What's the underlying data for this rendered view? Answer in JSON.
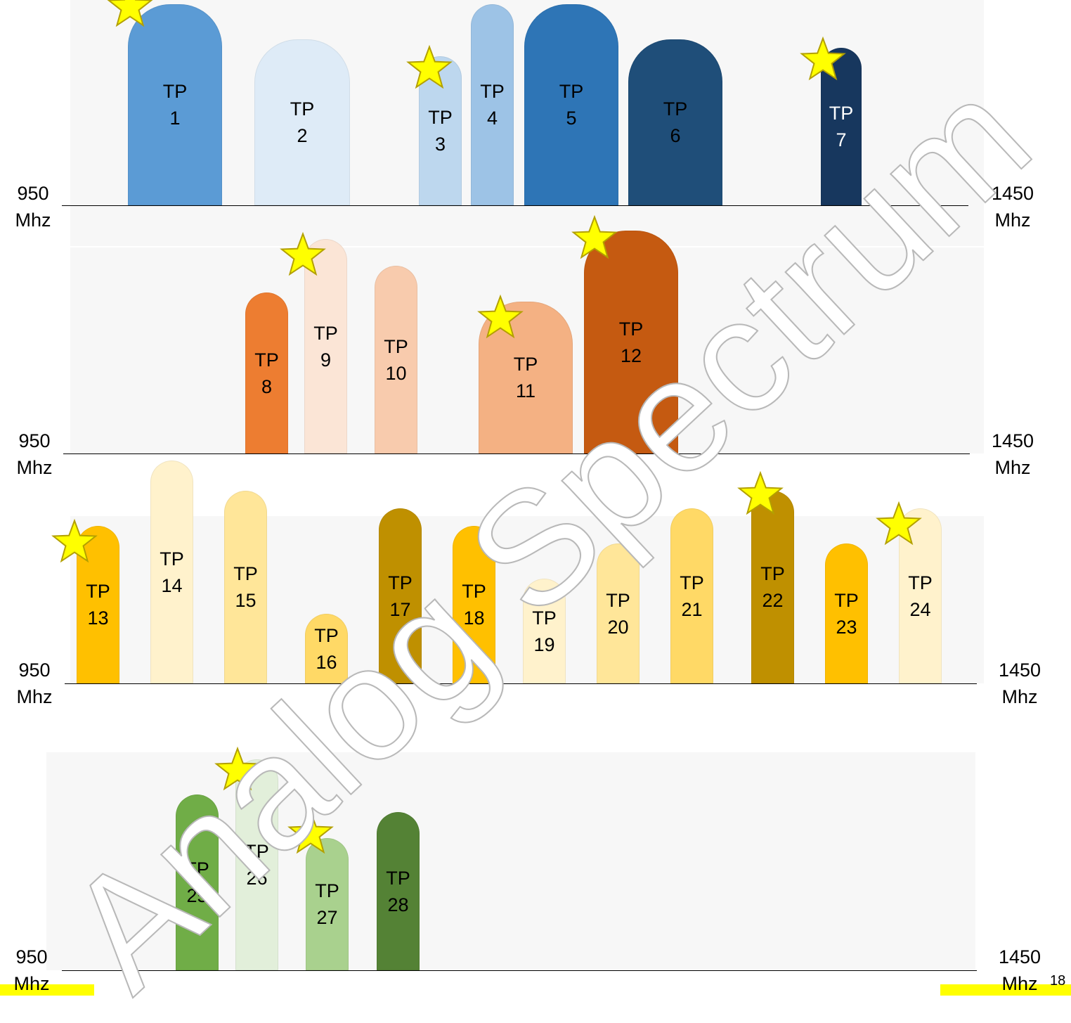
{
  "bands": [
    {
      "id": "band-1",
      "left_freq": {
        "value": "950",
        "unit": "Mhz"
      },
      "right_freq": {
        "value": "1450",
        "unit": "Mhz"
      },
      "transponders": [
        {
          "num": "1",
          "color": "#5b9bd5",
          "text": "#000000",
          "star": true
        },
        {
          "num": "2",
          "color": "#deebf7",
          "text": "#000000",
          "star": false
        },
        {
          "num": "3",
          "color": "#bdd7ee",
          "text": "#000000",
          "star": true
        },
        {
          "num": "4",
          "color": "#9dc3e6",
          "text": "#000000",
          "star": false
        },
        {
          "num": "5",
          "color": "#2e75b6",
          "text": "#000000",
          "star": false
        },
        {
          "num": "6",
          "color": "#1f4e79",
          "text": "#000000",
          "star": false
        },
        {
          "num": "7",
          "color": "#17375e",
          "text": "#ffffff",
          "star": true
        }
      ]
    },
    {
      "id": "band-2",
      "left_freq": {
        "value": "950",
        "unit": "Mhz"
      },
      "right_freq": {
        "value": "1450",
        "unit": "Mhz"
      },
      "transponders": [
        {
          "num": "8",
          "color": "#ed7d31",
          "text": "#000000",
          "star": false
        },
        {
          "num": "9",
          "color": "#fbe5d6",
          "text": "#000000",
          "star": true
        },
        {
          "num": "10",
          "color": "#f8cbad",
          "text": "#000000",
          "star": false
        },
        {
          "num": "11",
          "color": "#f4b183",
          "text": "#000000",
          "star": true
        },
        {
          "num": "12",
          "color": "#c55a11",
          "text": "#000000",
          "star": true
        }
      ]
    },
    {
      "id": "band-3",
      "left_freq": {
        "value": "950",
        "unit": "Mhz"
      },
      "right_freq": {
        "value": "1450",
        "unit": "Mhz"
      },
      "transponders": [
        {
          "num": "13",
          "color": "#ffc000",
          "text": "#000000",
          "star": true
        },
        {
          "num": "14",
          "color": "#fff2cc",
          "text": "#000000",
          "star": false
        },
        {
          "num": "15",
          "color": "#ffe699",
          "text": "#000000",
          "star": false
        },
        {
          "num": "16",
          "color": "#ffd966",
          "text": "#000000",
          "star": false
        },
        {
          "num": "17",
          "color": "#bf9000",
          "text": "#000000",
          "star": false
        },
        {
          "num": "18",
          "color": "#ffc000",
          "text": "#000000",
          "star": false
        },
        {
          "num": "19",
          "color": "#fff2cc",
          "text": "#000000",
          "star": false
        },
        {
          "num": "20",
          "color": "#ffe699",
          "text": "#000000",
          "star": false
        },
        {
          "num": "21",
          "color": "#ffd966",
          "text": "#000000",
          "star": false
        },
        {
          "num": "22",
          "color": "#bf9000",
          "text": "#000000",
          "star": true
        },
        {
          "num": "23",
          "color": "#ffc000",
          "text": "#000000",
          "star": false
        },
        {
          "num": "24",
          "color": "#fff2cc",
          "text": "#000000",
          "star": true
        }
      ]
    },
    {
      "id": "band-4",
      "left_freq": {
        "value": "950",
        "unit": "Mhz"
      },
      "right_freq": {
        "value": "1450",
        "unit": "Mhz"
      },
      "transponders": [
        {
          "num": "25",
          "color": "#70ad47",
          "text": "#000000",
          "star": false
        },
        {
          "num": "26",
          "color": "#e2efda",
          "text": "#000000",
          "star": true
        },
        {
          "num": "27",
          "color": "#a9d18e",
          "text": "#000000",
          "star": true
        },
        {
          "num": "28",
          "color": "#548235",
          "text": "#000000",
          "star": false
        }
      ]
    }
  ],
  "tp_prefix": "TP",
  "watermark": "Analog Spectrum",
  "page_number": "18",
  "accent": "#ffff00",
  "star_color": "#ffff00"
}
